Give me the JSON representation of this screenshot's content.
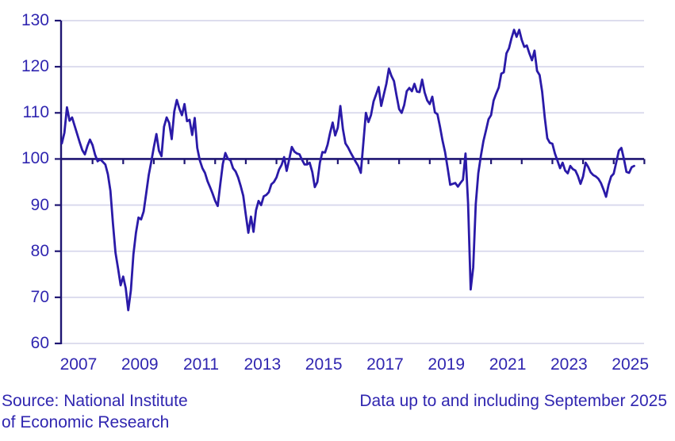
{
  "chart_data": {
    "type": "line",
    "title": "",
    "xlabel": "",
    "ylabel": "",
    "x_start": "2007-01",
    "x_end": "2025-09",
    "frequency": "monthly",
    "ylim": [
      60,
      130
    ],
    "y_ticks": [
      60,
      70,
      80,
      90,
      100,
      110,
      120,
      130
    ],
    "x_tick_years": [
      2007,
      2009,
      2011,
      2013,
      2015,
      2017,
      2019,
      2021,
      2023,
      2025
    ],
    "baseline": 100,
    "grid": "horizontal",
    "legend_position": "none",
    "monthly_values": [
      103.4,
      105.7,
      111.2,
      108.3,
      109.0,
      107.2,
      105.4,
      103.6,
      101.9,
      101.0,
      102.8,
      104.2,
      103.0,
      100.9,
      99.5,
      99.9,
      99.4,
      98.8,
      96.7,
      93.1,
      86.0,
      79.7,
      76.2,
      72.6,
      74.5,
      72.0,
      67.2,
      71.5,
      79.3,
      84.0,
      87.3,
      86.9,
      88.6,
      92.5,
      96.5,
      99.4,
      102.6,
      105.4,
      101.8,
      100.6,
      107.0,
      109.0,
      107.8,
      104.3,
      110.3,
      112.8,
      110.9,
      109.5,
      111.9,
      108.2,
      108.5,
      105.2,
      108.9,
      102.4,
      99.7,
      98.0,
      97.0,
      95.2,
      93.9,
      92.5,
      90.9,
      89.8,
      94.5,
      98.9,
      101.3,
      100.0,
      99.7,
      98.0,
      97.3,
      96.0,
      94.1,
      92.0,
      87.9,
      84.0,
      87.5,
      84.2,
      88.9,
      90.9,
      90.0,
      91.9,
      92.2,
      92.8,
      94.5,
      95.0,
      96.0,
      97.7,
      98.7,
      100.4,
      97.4,
      100.0,
      102.6,
      101.6,
      101.2,
      101.0,
      99.8,
      98.8,
      98.8,
      99.2,
      97.2,
      93.9,
      95.0,
      99.2,
      101.5,
      101.4,
      103.1,
      105.7,
      107.9,
      105.1,
      106.8,
      111.5,
      106.5,
      103.4,
      102.5,
      101.4,
      100.4,
      99.4,
      98.5,
      97.0,
      103.5,
      110.0,
      108.0,
      109.5,
      112.5,
      114.0,
      115.6,
      111.5,
      113.9,
      116.3,
      119.6,
      118.0,
      116.9,
      113.8,
      110.8,
      110.0,
      111.7,
      114.7,
      115.4,
      114.7,
      116.3,
      114.6,
      114.5,
      117.2,
      114.4,
      112.7,
      111.9,
      113.5,
      110.1,
      109.7,
      107.0,
      104.0,
      101.5,
      98.0,
      94.4,
      94.6,
      94.8,
      94.0,
      94.8,
      95.5,
      101.2,
      90.5,
      71.7,
      76.5,
      90.2,
      96.9,
      100.6,
      103.9,
      106.2,
      108.6,
      109.5,
      112.7,
      114.2,
      115.5,
      118.5,
      118.8,
      122.9,
      124.0,
      126.2,
      128.0,
      126.5,
      128.0,
      125.8,
      124.3,
      124.6,
      122.9,
      121.4,
      123.5,
      119.1,
      118.2,
      114.6,
      109.0,
      104.5,
      103.5,
      103.3,
      101.2,
      99.6,
      98.0,
      99.2,
      97.5,
      96.9,
      98.5,
      97.8,
      97.5,
      96.3,
      94.6,
      96.2,
      99.2,
      98.3,
      97.1,
      96.5,
      96.2,
      95.7,
      94.8,
      93.4,
      91.8,
      94.4,
      96.2,
      96.8,
      99.3,
      101.8,
      102.4,
      100.0,
      97.2,
      97.0,
      98.2,
      98.5
    ]
  },
  "footer": {
    "source_line1": "Source: National Institute",
    "source_line2": "of Economic Research",
    "data_note": "Data up to and including September 2025"
  },
  "colors": {
    "line": "#2a1aa8",
    "axis": "#1e1572",
    "grid": "#d8d8ec",
    "text": "#3026b0",
    "background": "#ffffff"
  }
}
